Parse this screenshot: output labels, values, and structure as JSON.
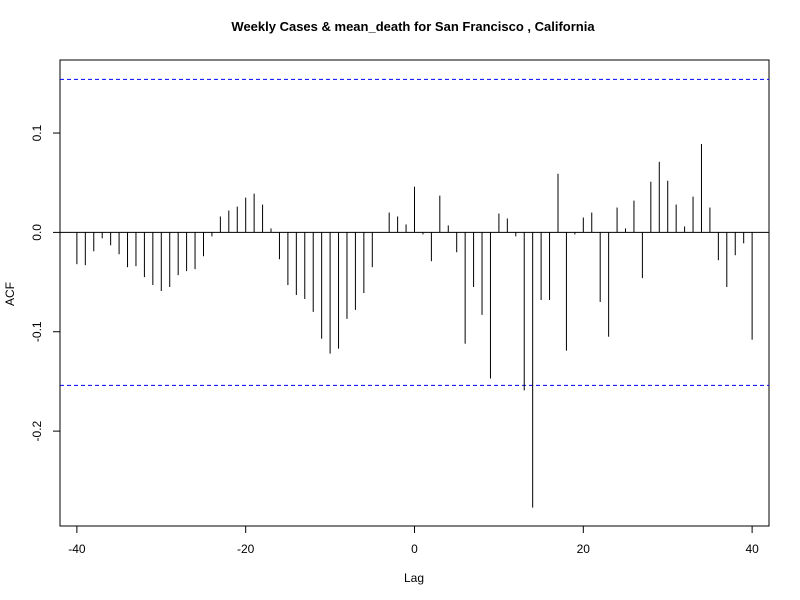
{
  "chart_data": {
    "type": "bar",
    "title": "Weekly Cases & mean_death for San Francisco , California",
    "xlabel": "Lag",
    "ylabel": "ACF",
    "xlim": [
      -42,
      42
    ],
    "ylim": [
      -0.2955,
      0.1735
    ],
    "xticks": [
      -40,
      -20,
      0,
      20,
      40
    ],
    "xtick_labels": [
      "-40",
      "-20",
      "0",
      "20",
      "40"
    ],
    "yticks": [
      -0.2,
      -0.1,
      0.0,
      0.1
    ],
    "ytick_labels": [
      "-0.2",
      "-0.1",
      "0.0",
      "0.1"
    ],
    "confidence_limit": 0.154,
    "confidence_color": "#0000ff",
    "bar_color": "#000000",
    "grid": false,
    "x": [
      -40,
      -39,
      -38,
      -37,
      -36,
      -35,
      -34,
      -33,
      -32,
      -31,
      -30,
      -29,
      -28,
      -27,
      -26,
      -25,
      -24,
      -23,
      -22,
      -21,
      -20,
      -19,
      -18,
      -17,
      -16,
      -15,
      -14,
      -13,
      -12,
      -11,
      -10,
      -9,
      -8,
      -7,
      -6,
      -5,
      -4,
      -3,
      -2,
      -1,
      0,
      1,
      2,
      3,
      4,
      5,
      6,
      7,
      8,
      9,
      10,
      11,
      12,
      13,
      14,
      15,
      16,
      17,
      18,
      19,
      20,
      21,
      22,
      23,
      24,
      25,
      26,
      27,
      28,
      29,
      30,
      31,
      32,
      33,
      34,
      35,
      36,
      37,
      38,
      39,
      40
    ],
    "values": [
      -0.032,
      -0.033,
      -0.019,
      -0.006,
      -0.013,
      -0.022,
      -0.035,
      -0.034,
      -0.045,
      -0.053,
      -0.059,
      -0.055,
      -0.043,
      -0.039,
      -0.037,
      -0.024,
      -0.004,
      0.016,
      0.022,
      0.026,
      0.035,
      0.039,
      0.028,
      0.004,
      -0.027,
      -0.053,
      -0.063,
      -0.067,
      -0.08,
      -0.107,
      -0.122,
      -0.117,
      -0.087,
      -0.078,
      -0.061,
      -0.035,
      0.0,
      0.02,
      0.016,
      0.008,
      0.046,
      -0.002,
      -0.029,
      0.037,
      0.007,
      -0.02,
      -0.112,
      -0.055,
      -0.083,
      -0.147,
      0.019,
      0.014,
      -0.004,
      -0.159,
      -0.277,
      -0.068,
      -0.068,
      0.059,
      -0.119,
      -0.002,
      0.015,
      0.02,
      -0.07,
      -0.105,
      0.025,
      0.004,
      0.032,
      -0.046,
      0.051,
      0.071,
      0.052,
      0.028,
      0.006,
      0.036,
      0.089,
      0.025,
      -0.028,
      -0.055,
      -0.023,
      -0.011,
      -0.108
    ]
  }
}
